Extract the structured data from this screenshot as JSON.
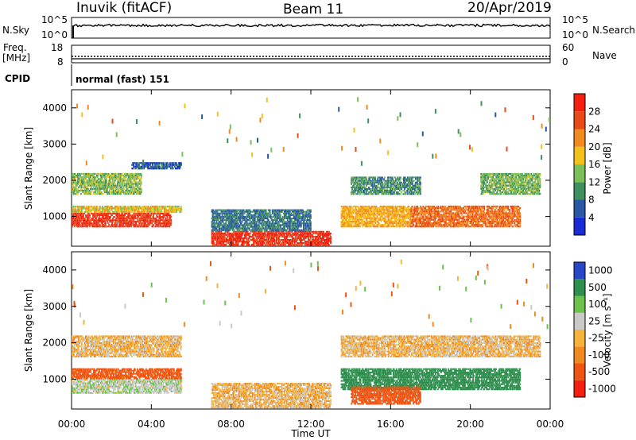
{
  "header": {
    "station": "Inuvik (fitACF)",
    "beam": "Beam 11",
    "date": "20/Apr/2019"
  },
  "strip_nsky": {
    "left_label": "N.Sky",
    "right_label": "N.Search",
    "left_ticks": [
      "10^5",
      "10^0"
    ],
    "right_ticks": [
      "10^5",
      "10^0"
    ]
  },
  "strip_freq": {
    "left_label_1": "Freq.",
    "left_label_2": "[MHz]",
    "right_label": "Nave",
    "left_ticks": [
      "18",
      "8"
    ],
    "right_ticks": [
      "60",
      "0"
    ]
  },
  "cpid": {
    "label": "CPID",
    "mode": "normal (fast) 151"
  },
  "x_axis": {
    "title": "Time UT",
    "ticks": [
      "00:00",
      "04:00",
      "08:00",
      "12:00",
      "16:00",
      "20:00",
      "00:00"
    ]
  },
  "power_panel": {
    "ylabel": "Slant Range [km]",
    "yticks": [
      "1000",
      "2000",
      "3000",
      "4000"
    ],
    "colorbar_label": "Power [dB]",
    "colorbar_ticks": [
      "4",
      "8",
      "12",
      "16",
      "20",
      "24",
      "28"
    ]
  },
  "velocity_panel": {
    "ylabel": "Slant Range [km]",
    "yticks": [
      "1000",
      "2000",
      "3000",
      "4000"
    ],
    "colorbar_label": "Velocity [m s⁻¹]",
    "colorbar_ticks": [
      "1000",
      "500",
      "100",
      "25",
      "-25",
      "-100",
      "-500",
      "-1000"
    ]
  },
  "colors": {
    "power_scale": [
      "#1a2bd6",
      "#2a57a6",
      "#3f8f5f",
      "#7cc05a",
      "#f2c21a",
      "#f18a1f",
      "#ea4a17",
      "#f41f0f"
    ],
    "velocity_scale": [
      "#f41f0f",
      "#ee5412",
      "#f08a1f",
      "#f5b33c",
      "#c9c9c5",
      "#6cc24a",
      "#2e8f4e",
      "#2747c8"
    ]
  },
  "chart_data": [
    {
      "type": "heatmap",
      "title": "Power [dB]",
      "xlabel": "Time UT",
      "ylabel": "Slant Range [km]",
      "xlim": [
        0,
        24
      ],
      "ylim": [
        180,
        4500
      ],
      "colorbar_range": [
        0,
        32
      ],
      "regions": [
        {
          "t": [
            0.0,
            5.0
          ],
          "r": [
            700,
            1100
          ],
          "value": 28
        },
        {
          "t": [
            0.0,
            5.5
          ],
          "r": [
            1100,
            1300
          ],
          "value": 18
        },
        {
          "t": [
            0.0,
            3.5
          ],
          "r": [
            1600,
            2200
          ],
          "value": 14
        },
        {
          "t": [
            3.0,
            5.5
          ],
          "r": [
            2300,
            2500
          ],
          "value": 6
        },
        {
          "t": [
            7.0,
            13.0
          ],
          "r": [
            200,
            600
          ],
          "value": 29
        },
        {
          "t": [
            7.0,
            12.0
          ],
          "r": [
            600,
            1200
          ],
          "value": 8
        },
        {
          "t": [
            13.5,
            17.0
          ],
          "r": [
            700,
            1300
          ],
          "value": 20
        },
        {
          "t": [
            17.0,
            22.5
          ],
          "r": [
            700,
            1300
          ],
          "value": 24
        },
        {
          "t": [
            14.0,
            17.5
          ],
          "r": [
            1600,
            2100
          ],
          "value": 10
        },
        {
          "t": [
            20.5,
            23.5
          ],
          "r": [
            1600,
            2200
          ],
          "value": 13
        }
      ]
    },
    {
      "type": "heatmap",
      "title": "Velocity [m s^-1]",
      "xlabel": "Time UT",
      "ylabel": "Slant Range [km]",
      "xlim": [
        0,
        24
      ],
      "ylim": [
        180,
        4500
      ],
      "regions": [
        {
          "t": [
            0.0,
            5.5
          ],
          "r": [
            600,
            1000
          ],
          "value": 80
        },
        {
          "t": [
            0.0,
            5.5
          ],
          "r": [
            1000,
            1300
          ],
          "value": -150
        },
        {
          "t": [
            0.0,
            5.5
          ],
          "r": [
            1600,
            2200
          ],
          "value": 0
        },
        {
          "t": [
            7.0,
            13.0
          ],
          "r": [
            200,
            900
          ],
          "value": 0
        },
        {
          "t": [
            13.5,
            22.5
          ],
          "r": [
            700,
            1300
          ],
          "value": 600
        },
        {
          "t": [
            14.0,
            17.5
          ],
          "r": [
            300,
            800
          ],
          "value": -200
        },
        {
          "t": [
            13.5,
            23.5
          ],
          "r": [
            1600,
            2200
          ],
          "value": 0
        }
      ]
    }
  ]
}
